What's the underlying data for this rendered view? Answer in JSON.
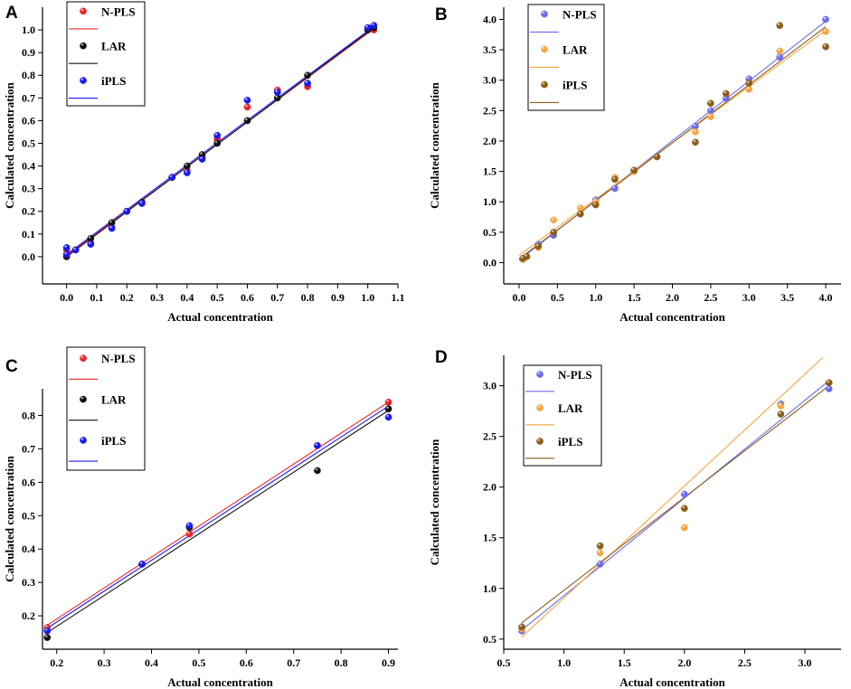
{
  "chart_data": [
    {
      "panel": "A",
      "type": "scatter",
      "xlabel": "Actual concentration",
      "ylabel": "Calculated concentration",
      "xlim": [
        -0.08,
        1.1
      ],
      "ylim": [
        -0.12,
        1.1
      ],
      "xticks": [
        "0.0",
        "0.1",
        "0.2",
        "0.3",
        "0.4",
        "0.5",
        "0.6",
        "0.7",
        "0.8",
        "0.9",
        "1.0",
        "1.1"
      ],
      "yticks": [
        "0.0",
        "0.1",
        "0.2",
        "0.3",
        "0.4",
        "0.5",
        "0.6",
        "0.7",
        "0.8",
        "0.9",
        "1.0"
      ],
      "legend": {
        "position": "top-left",
        "entries": [
          "N-PLS",
          "LAR",
          "iPLS"
        ]
      },
      "series": [
        {
          "name": "N-PLS",
          "color": "#e8262a",
          "x": [
            0.0,
            0.0,
            0.03,
            0.08,
            0.15,
            0.2,
            0.25,
            0.35,
            0.4,
            0.45,
            0.5,
            0.6,
            0.7,
            0.8,
            1.0,
            1.02
          ],
          "y": [
            0.01,
            0.03,
            0.03,
            0.06,
            0.13,
            0.2,
            0.24,
            0.35,
            0.38,
            0.44,
            0.52,
            0.66,
            0.735,
            0.75,
            1.0,
            1.0
          ],
          "fit": {
            "x": [
              0.0,
              1.02
            ],
            "y": [
              0.005,
              1.005
            ]
          }
        },
        {
          "name": "LAR",
          "color": "#111111",
          "x": [
            0.0,
            0.03,
            0.08,
            0.15,
            0.2,
            0.25,
            0.35,
            0.4,
            0.45,
            0.5,
            0.6,
            0.7,
            0.8,
            1.0,
            1.02
          ],
          "y": [
            0.0,
            0.03,
            0.08,
            0.15,
            0.2,
            0.24,
            0.35,
            0.4,
            0.45,
            0.5,
            0.6,
            0.7,
            0.8,
            1.0,
            1.01
          ],
          "fit": {
            "x": [
              0.0,
              1.02
            ],
            "y": [
              0.0,
              1.01
            ]
          }
        },
        {
          "name": "iPLS",
          "color": "#1a1aee",
          "x": [
            0.0,
            0.0,
            0.03,
            0.08,
            0.15,
            0.2,
            0.25,
            0.35,
            0.4,
            0.45,
            0.5,
            0.6,
            0.7,
            0.8,
            1.0,
            1.02
          ],
          "y": [
            0.01,
            0.04,
            0.03,
            0.055,
            0.125,
            0.2,
            0.235,
            0.35,
            0.37,
            0.43,
            0.535,
            0.69,
            0.725,
            0.765,
            1.01,
            1.02
          ],
          "fit": {
            "x": [
              0.0,
              1.02
            ],
            "y": [
              0.01,
              1.015
            ]
          }
        }
      ]
    },
    {
      "panel": "B",
      "type": "scatter",
      "xlabel": "Actual concentration",
      "ylabel": "Calculated concentration",
      "xlim": [
        -0.2,
        4.2
      ],
      "ylim": [
        -0.35,
        4.2
      ],
      "xticks": [
        "0.0",
        "0.5",
        "1.0",
        "1.5",
        "2.0",
        "2.5",
        "3.0",
        "3.5",
        "4.0"
      ],
      "yticks": [
        "0.0",
        "0.5",
        "1.0",
        "1.5",
        "2.0",
        "2.5",
        "3.0",
        "3.5",
        "4.0"
      ],
      "legend": {
        "position": "top-left",
        "entries": [
          "N-PLS",
          "LAR",
          "iPLS"
        ]
      },
      "series": [
        {
          "name": "N-PLS",
          "color": "#6b6bee",
          "x": [
            0.05,
            0.1,
            0.25,
            0.45,
            0.8,
            1.0,
            1.25,
            1.5,
            2.3,
            2.5,
            2.7,
            3.0,
            3.4,
            4.0
          ],
          "y": [
            0.06,
            0.1,
            0.3,
            0.45,
            0.8,
            1.03,
            1.22,
            1.5,
            2.24,
            2.5,
            2.7,
            3.02,
            3.38,
            4.0
          ],
          "fit": {
            "x": [
              0.0,
              4.0
            ],
            "y": [
              0.04,
              3.97
            ]
          }
        },
        {
          "name": "LAR",
          "color": "#f5a643",
          "x": [
            0.05,
            0.1,
            0.25,
            0.45,
            0.8,
            1.0,
            1.25,
            1.5,
            2.3,
            2.5,
            3.0,
            3.4,
            4.0
          ],
          "y": [
            0.05,
            0.1,
            0.25,
            0.7,
            0.9,
            1.0,
            1.4,
            1.5,
            2.15,
            2.4,
            2.85,
            3.48,
            3.8
          ],
          "fit": {
            "x": [
              0.0,
              4.0
            ],
            "y": [
              0.12,
              3.82
            ]
          }
        },
        {
          "name": "iPLS",
          "color": "#8b5d1a",
          "x": [
            0.05,
            0.1,
            0.25,
            0.45,
            0.8,
            1.0,
            1.25,
            1.5,
            1.8,
            2.3,
            2.5,
            2.7,
            3.0,
            3.4,
            4.0
          ],
          "y": [
            0.07,
            0.1,
            0.27,
            0.5,
            0.8,
            0.95,
            1.37,
            1.52,
            1.74,
            1.98,
            2.62,
            2.78,
            2.95,
            3.9,
            3.55
          ],
          "fit": {
            "x": [
              0.0,
              4.0
            ],
            "y": [
              0.06,
              3.88
            ]
          }
        }
      ]
    },
    {
      "panel": "C",
      "type": "scatter",
      "xlabel": "Actual concentration",
      "ylabel": "Calculated concentration",
      "xlim": [
        0.17,
        0.92
      ],
      "ylim": [
        0.1,
        0.88
      ],
      "xticks": [
        "0.2",
        "0.3",
        "0.4",
        "0.5",
        "0.6",
        "0.7",
        "0.8",
        "0.9"
      ],
      "yticks": [
        "0.2",
        "0.3",
        "0.4",
        "0.5",
        "0.6",
        "0.7",
        "0.8"
      ],
      "legend": {
        "position": "top-left",
        "entries": [
          "N-PLS",
          "LAR",
          "iPLS"
        ]
      },
      "series": [
        {
          "name": "N-PLS",
          "color": "#e8262a",
          "x": [
            0.18,
            0.38,
            0.48,
            0.75,
            0.9
          ],
          "y": [
            0.165,
            0.355,
            0.445,
            0.71,
            0.84
          ],
          "fit": {
            "x": [
              0.18,
              0.9
            ],
            "y": [
              0.172,
              0.84
            ]
          }
        },
        {
          "name": "LAR",
          "color": "#111111",
          "x": [
            0.18,
            0.38,
            0.48,
            0.75,
            0.9
          ],
          "y": [
            0.135,
            0.355,
            0.465,
            0.635,
            0.82
          ],
          "fit": {
            "x": [
              0.18,
              0.9
            ],
            "y": [
              0.15,
              0.815
            ]
          }
        },
        {
          "name": "iPLS",
          "color": "#1a1aee",
          "x": [
            0.18,
            0.38,
            0.48,
            0.75,
            0.9
          ],
          "y": [
            0.155,
            0.355,
            0.47,
            0.71,
            0.795
          ],
          "fit": {
            "x": [
              0.18,
              0.9
            ],
            "y": [
              0.163,
              0.828
            ]
          }
        }
      ]
    },
    {
      "panel": "D",
      "type": "scatter",
      "xlabel": "Actual concentration",
      "ylabel": "Calculated concentration",
      "xlim": [
        0.5,
        3.3
      ],
      "ylim": [
        0.4,
        3.3
      ],
      "xticks": [
        "0.5",
        "1.0",
        "1.5",
        "2.0",
        "2.5",
        "3.0"
      ],
      "yticks": [
        "0.5",
        "1.0",
        "1.5",
        "2.0",
        "2.5",
        "3.0"
      ],
      "legend": {
        "position": "top-left",
        "entries": [
          "N-PLS",
          "LAR",
          "iPLS"
        ]
      },
      "series": [
        {
          "name": "N-PLS",
          "color": "#6b6bee",
          "x": [
            0.65,
            1.3,
            2.0,
            2.8,
            3.2
          ],
          "y": [
            0.58,
            1.24,
            1.93,
            2.82,
            2.97
          ],
          "fit": {
            "x": [
              0.65,
              3.2
            ],
            "y": [
              0.59,
              3.05
            ]
          }
        },
        {
          "name": "LAR",
          "color": "#f5a643",
          "x": [
            0.65,
            1.3,
            2.0,
            2.8,
            3.2
          ],
          "y": [
            0.6,
            1.35,
            1.6,
            2.8,
            3.03
          ],
          "fit": {
            "x": [
              0.65,
              3.15
            ],
            "y": [
              0.52,
              3.28
            ]
          }
        },
        {
          "name": "iPLS",
          "color": "#8b5d1a",
          "x": [
            0.65,
            1.3,
            2.0,
            2.8,
            3.2
          ],
          "y": [
            0.62,
            1.42,
            1.79,
            2.72,
            3.03
          ],
          "fit": {
            "x": [
              0.65,
              3.2
            ],
            "y": [
              0.66,
              3.0
            ]
          }
        }
      ]
    }
  ]
}
